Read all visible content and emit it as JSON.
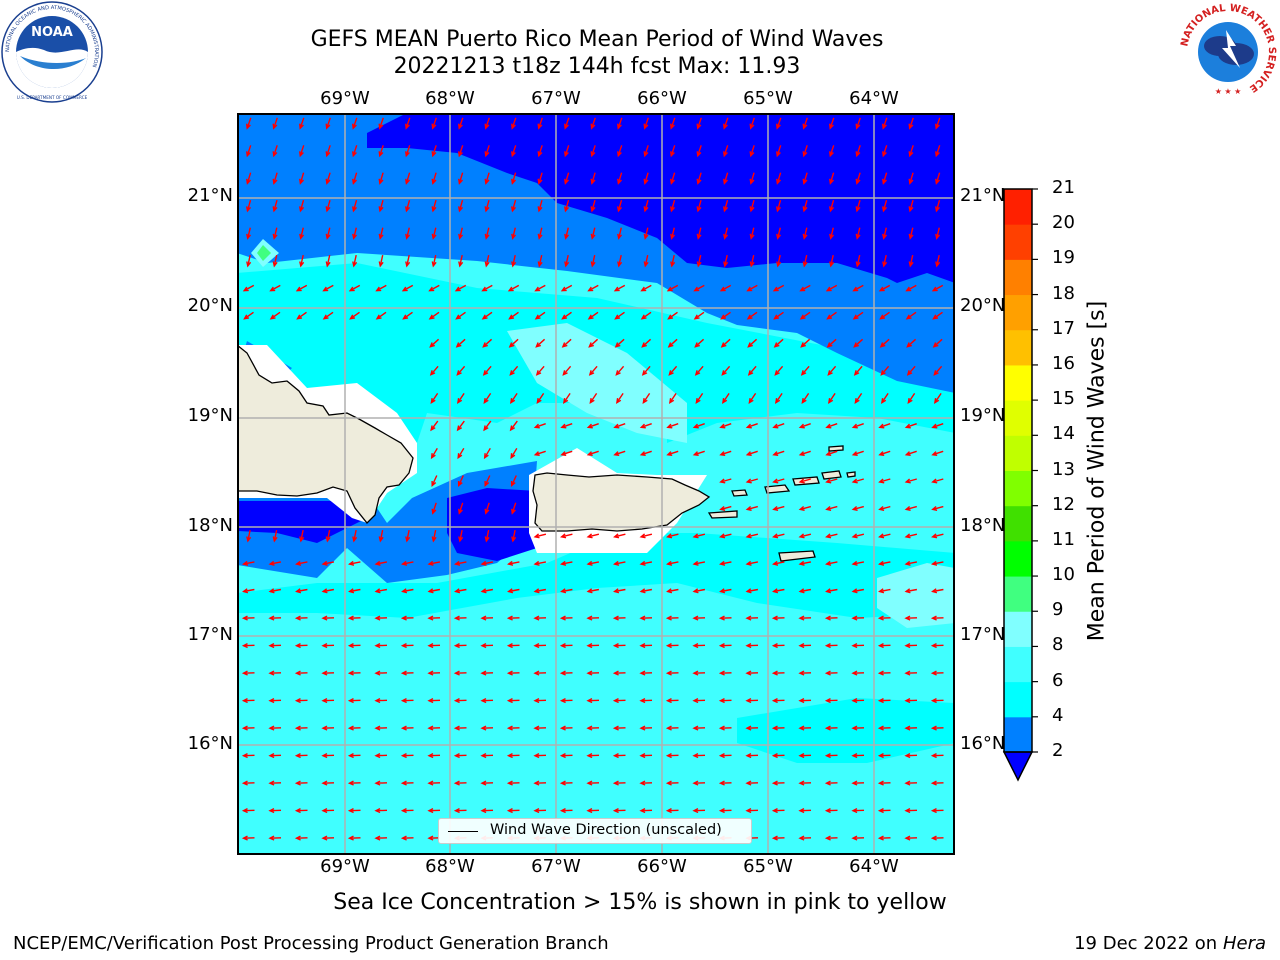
{
  "header": {
    "title_line1": "GEFS MEAN Puerto Rico Mean Period of Wind Waves",
    "title_line2": "20221213 t18z 144h fcst    Max: 11.93"
  },
  "logos": {
    "noaa": {
      "text": "NOAA",
      "ring_text": "NATIONAL OCEANIC AND ATMOSPHERIC ADMINISTRATION",
      "bottom_text": "U.S. DEPARTMENT OF COMMERCE"
    },
    "nws": {
      "ring_text": "NATIONAL WEATHER SERVICE"
    }
  },
  "map": {
    "lon_ticks": [
      "69°W",
      "68°W",
      "67°W",
      "66°W",
      "65°W",
      "64°W"
    ],
    "lat_ticks": [
      "21°N",
      "20°N",
      "19°N",
      "18°N",
      "17°N",
      "16°N"
    ],
    "colors": {
      "deep_blue": "#0000ff",
      "mid_blue": "#0080ff",
      "cyan": "#00ffff",
      "light_cyan": "#40ffff",
      "pale_cyan": "#80ffff",
      "land": "#eeecdc",
      "arrow": "#ff0000",
      "grid": "#b0b0b0"
    },
    "arrow_pattern": "NNE-to-SSW in northern waters, east-to-west across the Caribbean south of ~18.5°N",
    "legend_label": "Wind Wave Direction (unscaled)"
  },
  "colorbar": {
    "title": "Mean Period of Wind Waves [s]",
    "levels": [
      "2",
      "4",
      "6",
      "8",
      "9",
      "10",
      "11",
      "12",
      "13",
      "14",
      "15",
      "16",
      "17",
      "18",
      "19",
      "20",
      "21"
    ],
    "colors": [
      "#0000ff",
      "#0080ff",
      "#00ffff",
      "#40ffff",
      "#80ffff",
      "#40ff80",
      "#00ff00",
      "#40e000",
      "#80ff00",
      "#c0ff00",
      "#e0ff00",
      "#ffff00",
      "#ffc000",
      "#ffa000",
      "#ff8000",
      "#ff4000",
      "#ff2000",
      "#ff0000"
    ],
    "under_color": "#0000ff"
  },
  "footer": {
    "subtitle": "Sea Ice Concentration > 15% is shown in pink to yellow",
    "left": "NCEP/EMC/Verification Post Processing Product Generation Branch",
    "right_prefix": "19 Dec 2022 on",
    "right_host": "Hera"
  }
}
